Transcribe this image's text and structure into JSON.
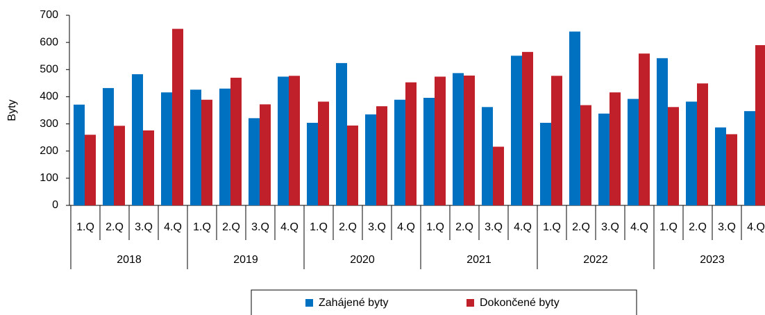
{
  "chart_data": {
    "type": "bar",
    "y_label": "Byty",
    "categories": [
      "1.Q",
      "2.Q",
      "3.Q",
      "4.Q",
      "1.Q",
      "2.Q",
      "3.Q",
      "4.Q",
      "1.Q",
      "2.Q",
      "3.Q",
      "4.Q",
      "1.Q",
      "2.Q",
      "3.Q",
      "4.Q",
      "1.Q",
      "2.Q",
      "3.Q",
      "4.Q",
      "1.Q",
      "2.Q",
      "3.Q",
      "4.Q"
    ],
    "groups": [
      "2018",
      "2019",
      "2020",
      "2021",
      "2022",
      "2023"
    ],
    "series": [
      {
        "name": "Zahájené byty",
        "color": "#0070c0",
        "values": [
          371,
          432,
          483,
          416,
          426,
          430,
          321,
          474,
          304,
          524,
          335,
          389,
          396,
          487,
          362,
          551,
          304,
          640,
          338,
          392,
          542,
          382,
          287,
          347
        ]
      },
      {
        "name": "Dokončené byty",
        "color": "#c0202a",
        "values": [
          260,
          293,
          276,
          650,
          389,
          470,
          372,
          477,
          382,
          294,
          365,
          453,
          474,
          478,
          216,
          565,
          477,
          369,
          416,
          559,
          362,
          449,
          262,
          590
        ]
      }
    ],
    "ylim": [
      0,
      700
    ],
    "yticks": [
      0,
      100,
      200,
      300,
      400,
      500,
      600,
      700
    ],
    "grid": false,
    "legend": "bottom"
  }
}
